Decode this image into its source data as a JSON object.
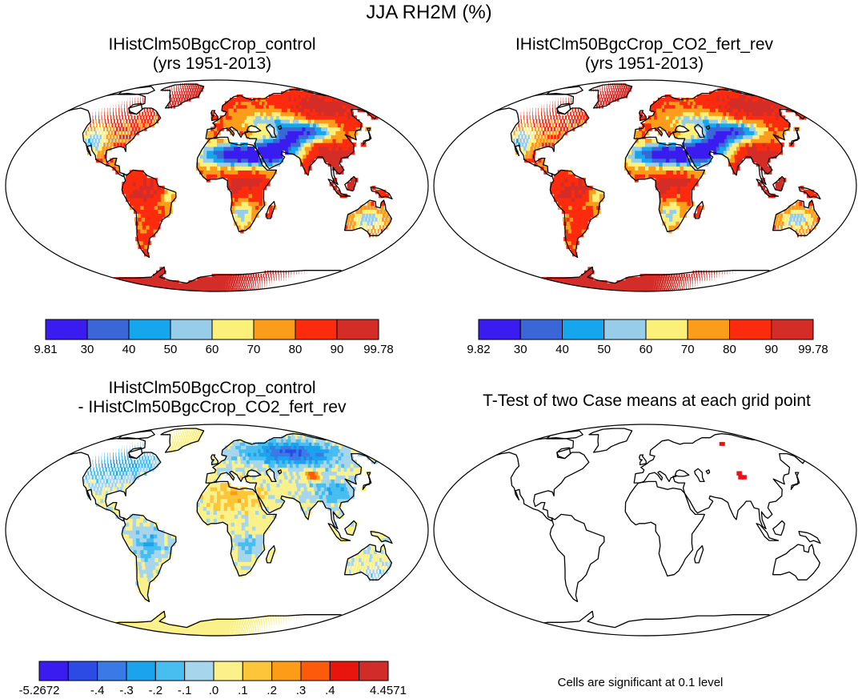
{
  "figure": {
    "title": "JJA RH2M (%)"
  },
  "panels": [
    {
      "id": "control",
      "title_line1": "IHistClm50BgcCrop_control",
      "title_line2": "(yrs 1951-2013)"
    },
    {
      "id": "co2",
      "title_line1": "IHistClm50BgcCrop_CO2_fert_rev",
      "title_line2": "(yrs 1951-2013)"
    },
    {
      "id": "diff",
      "title_line1": "IHistClm50BgcCrop_control",
      "title_line2": "- IHistClm50BgcCrop_CO2_fert_rev"
    },
    {
      "id": "ttest",
      "title_line1": "T-Test of two Case means at each grid point",
      "title_line2": ""
    }
  ],
  "colorbars": {
    "control": {
      "labels": [
        "9.81",
        "30",
        "40",
        "50",
        "60",
        "70",
        "80",
        "90",
        "99.78"
      ],
      "colors": [
        "#3b1cf0",
        "#3a66d8",
        "#16a6ee",
        "#98cdea",
        "#faf07a",
        "#fb9d1a",
        "#fc2b0e",
        "#d42d28"
      ]
    },
    "co2": {
      "labels": [
        "9.82",
        "30",
        "40",
        "50",
        "60",
        "70",
        "80",
        "90",
        "99.78"
      ],
      "colors": [
        "#3b1cf0",
        "#3a66d8",
        "#16a6ee",
        "#98cdea",
        "#faf07a",
        "#fb9d1a",
        "#fc2b0e",
        "#d42d28"
      ]
    },
    "diff": {
      "labels": [
        "-5.2672",
        "-.4",
        "-.3",
        "-.2",
        "-.1",
        ".0",
        ".1",
        ".2",
        ".3",
        ".4",
        "4.4571"
      ],
      "colors": [
        "#3b1cf0",
        "#2c4be4",
        "#3a7ae6",
        "#1ba3ee",
        "#47bdf0",
        "#a7d6ec",
        "#faf18a",
        "#fdc53a",
        "#fd9d17",
        "#fd5a0c",
        "#e8150c",
        "#d12c2a"
      ]
    }
  },
  "ttest": {
    "note": "Cells are significant at 0.1 level",
    "significant_color": "#e8101a"
  }
}
